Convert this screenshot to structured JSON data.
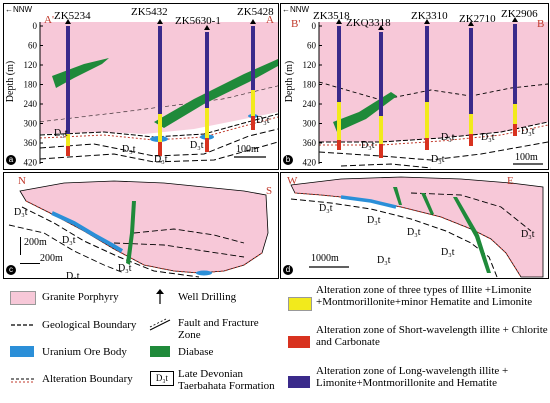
{
  "panel_a": {
    "direction": "NNW",
    "endpoint_left": "A'",
    "endpoint_right": "A",
    "wells": [
      "ZK5234",
      "ZK5432",
      "ZK5630-1",
      "ZK5428"
    ],
    "depth_label": "Depth (m)",
    "depth_ticks": [
      "0",
      "60",
      "120",
      "180",
      "240",
      "300",
      "360",
      "420"
    ],
    "formation_labels": [
      "D₃t",
      "D₃t",
      "D₃t",
      "D₃t",
      "D₃t"
    ],
    "scale": "100m",
    "panel_letter": "a"
  },
  "panel_b": {
    "direction": "NNW",
    "endpoint_left": "B'",
    "endpoint_right": "B",
    "wells": [
      "ZK3518",
      "ZKQ3318",
      "ZK3310",
      "ZK2710",
      "ZK2906"
    ],
    "depth_label": "Depth (m)",
    "depth_ticks": [
      "0",
      "60",
      "120",
      "180",
      "240",
      "300",
      "360",
      "420"
    ],
    "formation_labels": [
      "D₃t",
      "D₃t",
      "D₃t",
      "D₃t",
      "D₃t"
    ],
    "scale": "100m",
    "panel_letter": "b"
  },
  "panel_c": {
    "endpoint_left": "N",
    "endpoint_right": "S",
    "formation_labels": [
      "D₃t",
      "D₃t",
      "D₃t",
      "D₃t"
    ],
    "scale_v": "200m",
    "scale_h": "200m",
    "panel_letter": "c"
  },
  "panel_d": {
    "endpoint_left": "W",
    "endpoint_right": "E",
    "formation_labels": [
      "D₃t",
      "D₃t",
      "D₃t",
      "D₃t",
      "D₃t",
      "D₃t"
    ],
    "scale": "1000m",
    "panel_letter": "d"
  },
  "legend": {
    "granite": "Granite Porphyry",
    "geo_boundary": "Geological Boundary",
    "uranium": "Uranium Ore Body",
    "alteration_boundary": "Alteration Boundary",
    "well": "Well Drilling",
    "fault": "Fault and Fracture Zone",
    "diabase": "Diabase",
    "d3t_symbol": "D₃t",
    "d3t": "Late Devonian Taerbahata Formation",
    "zone_three": "Alteration zone of three types of Illite +Limonite +Montmorillonite+minor Hematite and Limonite",
    "zone_short": "Alteration zone of Short-wavelength illite + Chlorite and Carbonate",
    "zone_long": "Alteration zone of Long-wavelength illite + Limonite+Montmorillonite and Hematite"
  },
  "colors": {
    "granite": "#f7c8d8",
    "diabase": "#1f8a3a",
    "uranium": "#2b8fd8",
    "zone_three": "#f2ea1c",
    "zone_short": "#d8321f",
    "zone_long": "#3a2a8a"
  }
}
